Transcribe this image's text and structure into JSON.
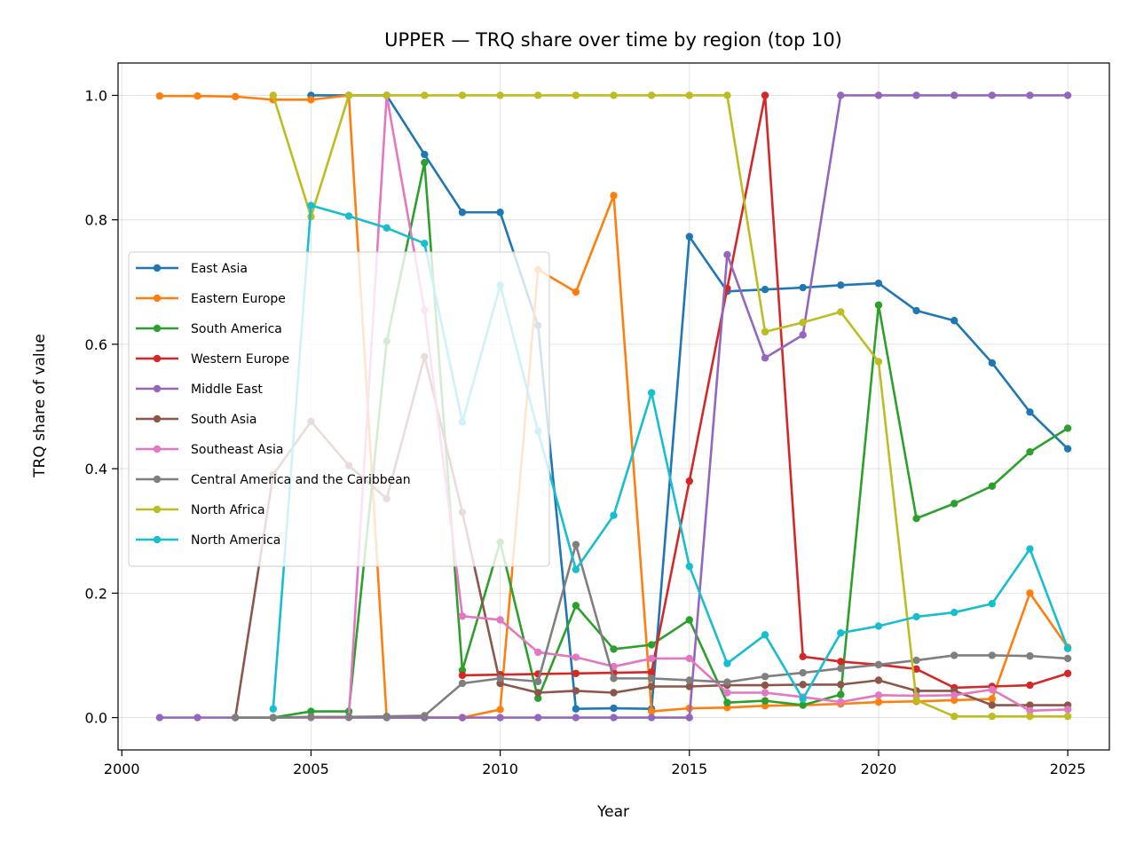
{
  "chart_data": {
    "type": "line",
    "title": "UPPER — TRQ share over time by region (top 10)",
    "xlabel": "Year",
    "ylabel": "TRQ share of value",
    "xlim": [
      1999.9,
      2026.1
    ],
    "ylim": [
      -0.052,
      1.052
    ],
    "xticks": [
      2000,
      2005,
      2010,
      2015,
      2020,
      2025
    ],
    "yticks": [
      0.0,
      0.2,
      0.4,
      0.6,
      0.8,
      1.0
    ],
    "ytick_labels": [
      "0.0",
      "0.2",
      "0.4",
      "0.6",
      "0.8",
      "1.0"
    ],
    "grid": true,
    "legend_position": "center-left",
    "series": [
      {
        "name": "East Asia",
        "color": "#1f77b4",
        "x": [
          2005,
          2006,
          2007,
          2008,
          2009,
          2010,
          2011,
          2012,
          2013,
          2014,
          2015,
          2016,
          2017,
          2018,
          2019,
          2020,
          2021,
          2022,
          2023,
          2024,
          2025
        ],
        "y": [
          1.0,
          1.0,
          1.0,
          0.905,
          0.812,
          0.812,
          0.63,
          0.014,
          0.015,
          0.014,
          0.773,
          0.685,
          0.688,
          0.691,
          0.695,
          0.698,
          0.654,
          0.638,
          0.57,
          0.491,
          0.432
        ]
      },
      {
        "name": "Eastern Europe",
        "color": "#ff7f0e",
        "x": [
          2001,
          2002,
          2003,
          2004,
          2005,
          2006,
          2007,
          2008,
          2009,
          2010,
          2011,
          2012,
          2013,
          2014,
          2015,
          2016,
          2017,
          2018,
          2019,
          2020,
          2021,
          2022,
          2023,
          2024,
          2025
        ],
        "y": [
          0.999,
          0.999,
          0.998,
          0.993,
          0.993,
          1.0,
          0.0,
          0.0,
          0.0,
          0.013,
          0.72,
          0.684,
          0.839,
          0.01,
          0.015,
          0.016,
          0.019,
          0.02,
          0.022,
          0.025,
          0.026,
          0.028,
          0.03,
          0.2,
          0.113
        ]
      },
      {
        "name": "South America",
        "color": "#2ca02c",
        "x": [
          2004,
          2005,
          2006,
          2007,
          2008,
          2009,
          2010,
          2011,
          2012,
          2013,
          2014,
          2015,
          2016,
          2017,
          2018,
          2019,
          2020,
          2021,
          2022,
          2023,
          2024,
          2025
        ],
        "y": [
          0.0,
          0.01,
          0.01,
          0.605,
          0.892,
          0.076,
          0.282,
          0.031,
          0.18,
          0.11,
          0.117,
          0.157,
          0.024,
          0.027,
          0.02,
          0.037,
          0.663,
          0.32,
          0.344,
          0.372,
          0.427,
          0.465
        ]
      },
      {
        "name": "Western Europe",
        "color": "#d62728",
        "x": [
          2009,
          2010,
          2011,
          2012,
          2013,
          2014,
          2015,
          2016,
          2017,
          2018,
          2019,
          2020,
          2021,
          2022,
          2023,
          2024,
          2025
        ],
        "y": [
          0.068,
          0.069,
          0.07,
          0.071,
          0.072,
          0.073,
          0.38,
          0.69,
          1.0,
          0.098,
          0.09,
          0.085,
          0.078,
          0.048,
          0.05,
          0.052,
          0.071
        ]
      },
      {
        "name": "Middle East",
        "color": "#9467bd",
        "x": [
          2001,
          2002,
          2003,
          2004,
          2005,
          2006,
          2007,
          2008,
          2009,
          2010,
          2011,
          2012,
          2013,
          2014,
          2015,
          2016,
          2017,
          2018,
          2019,
          2020,
          2021,
          2022,
          2023,
          2024,
          2025
        ],
        "y": [
          0.0,
          0.0,
          0.0,
          0.0,
          0.0,
          0.0,
          0.0,
          0.0,
          0.0,
          0.0,
          0.0,
          0.0,
          0.0,
          0.0,
          0.0,
          0.744,
          0.578,
          0.615,
          1.0,
          1.0,
          1.0,
          1.0,
          1.0,
          1.0,
          1.0
        ]
      },
      {
        "name": "South Asia",
        "color": "#8c564b",
        "x": [
          2003,
          2004,
          2005,
          2006,
          2007,
          2008,
          2009,
          2010,
          2011,
          2012,
          2013,
          2014,
          2015,
          2016,
          2017,
          2018,
          2019,
          2020,
          2021,
          2022,
          2023,
          2024,
          2025
        ],
        "y": [
          0.0,
          0.39,
          0.476,
          0.405,
          0.352,
          0.58,
          0.33,
          0.055,
          0.04,
          0.043,
          0.04,
          0.05,
          0.05,
          0.052,
          0.052,
          0.053,
          0.053,
          0.06,
          0.043,
          0.043,
          0.02,
          0.02,
          0.02
        ]
      },
      {
        "name": "Southeast Asia",
        "color": "#e377c2",
        "x": [
          2004,
          2005,
          2006,
          2007,
          2008,
          2009,
          2010,
          2011,
          2012,
          2013,
          2014,
          2015,
          2016,
          2017,
          2018,
          2019,
          2020,
          2021,
          2022,
          2023,
          2024,
          2025
        ],
        "y": [
          0.0,
          0.0,
          0.0,
          1.0,
          0.655,
          0.163,
          0.157,
          0.105,
          0.097,
          0.082,
          0.095,
          0.095,
          0.04,
          0.04,
          0.033,
          0.025,
          0.036,
          0.035,
          0.036,
          0.045,
          0.011,
          0.013
        ]
      },
      {
        "name": "Central America and the Caribbean",
        "color": "#7f7f7f",
        "x": [
          2003,
          2004,
          2005,
          2006,
          2007,
          2008,
          2009,
          2010,
          2011,
          2012,
          2013,
          2014,
          2015,
          2016,
          2017,
          2018,
          2019,
          2020,
          2021,
          2022,
          2023,
          2024,
          2025
        ],
        "y": [
          0.0,
          0.0,
          0.001,
          0.001,
          0.002,
          0.003,
          0.055,
          0.063,
          0.058,
          0.278,
          0.063,
          0.063,
          0.06,
          0.057,
          0.066,
          0.072,
          0.079,
          0.085,
          0.092,
          0.1,
          0.1,
          0.099,
          0.095
        ]
      },
      {
        "name": "North Africa",
        "color": "#bcbd22",
        "x": [
          2004,
          2005,
          2006,
          2007,
          2008,
          2009,
          2010,
          2011,
          2012,
          2013,
          2014,
          2015,
          2016,
          2017,
          2018,
          2019,
          2020,
          2021,
          2022,
          2023,
          2024,
          2025
        ],
        "y": [
          1.0,
          0.805,
          1.0,
          1.0,
          1.0,
          1.0,
          1.0,
          1.0,
          1.0,
          1.0,
          1.0,
          1.0,
          1.0,
          0.62,
          0.635,
          0.652,
          0.572,
          0.028,
          0.002,
          0.002,
          0.002,
          0.002
        ]
      },
      {
        "name": "North America",
        "color": "#17becf",
        "x": [
          2004,
          2005,
          2006,
          2007,
          2008,
          2009,
          2010,
          2011,
          2012,
          2013,
          2014,
          2015,
          2016,
          2017,
          2018,
          2019,
          2020,
          2021,
          2022,
          2023,
          2024,
          2025
        ],
        "y": [
          0.014,
          0.823,
          0.806,
          0.787,
          0.762,
          0.475,
          0.695,
          0.46,
          0.238,
          0.325,
          0.522,
          0.243,
          0.087,
          0.133,
          0.03,
          0.136,
          0.147,
          0.162,
          0.169,
          0.183,
          0.271,
          0.111
        ]
      }
    ]
  }
}
